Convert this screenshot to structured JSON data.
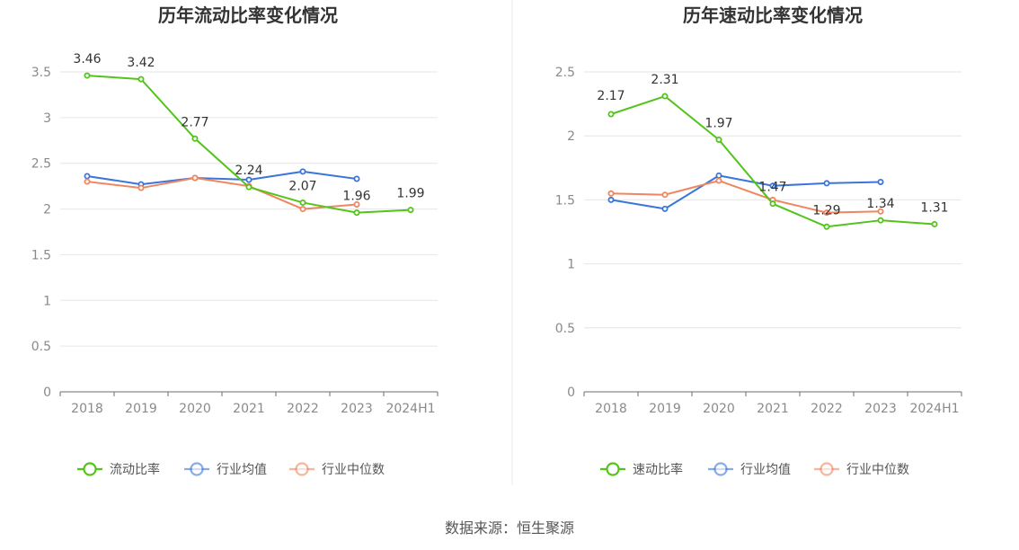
{
  "chart_data": [
    {
      "type": "line",
      "title": "历年流动比率变化情况",
      "categories": [
        "2018",
        "2019",
        "2020",
        "2021",
        "2022",
        "2023",
        "2024H1"
      ],
      "ylim": [
        0,
        3.5
      ],
      "yticks": [
        "0",
        "0.5",
        "1",
        "1.5",
        "2",
        "2.5",
        "3",
        "3.5"
      ],
      "grid": true,
      "legend_position": "bottom",
      "series": [
        {
          "name": "流动比率",
          "color": "#52c41a",
          "labels": true,
          "values": [
            3.46,
            3.42,
            2.77,
            2.24,
            2.07,
            1.96,
            1.99
          ],
          "labels_text": [
            "3.46",
            "3.42",
            "2.77",
            "2.24",
            "2.07",
            "1.96",
            "1.99"
          ]
        },
        {
          "name": "行业均值",
          "color": "#3b75d9",
          "labels": false,
          "values": [
            2.36,
            2.27,
            2.34,
            2.32,
            2.41,
            2.33,
            null
          ]
        },
        {
          "name": "行业中位数",
          "color": "#f0855f",
          "labels": false,
          "values": [
            2.3,
            2.23,
            2.34,
            2.25,
            2.0,
            2.05,
            null
          ]
        }
      ]
    },
    {
      "type": "line",
      "title": "历年速动比率变化情况",
      "categories": [
        "2018",
        "2019",
        "2020",
        "2021",
        "2022",
        "2023",
        "2024H1"
      ],
      "ylim": [
        0,
        2.5
      ],
      "yticks": [
        "0",
        "0.5",
        "1",
        "1.5",
        "2",
        "2.5"
      ],
      "grid": true,
      "legend_position": "bottom",
      "series": [
        {
          "name": "速动比率",
          "color": "#52c41a",
          "labels": true,
          "values": [
            2.17,
            2.31,
            1.97,
            1.47,
            1.29,
            1.34,
            1.31
          ],
          "labels_text": [
            "2.17",
            "2.31",
            "1.97",
            "1.47",
            "1.29",
            "1.34",
            "1.31"
          ]
        },
        {
          "name": "行业均值",
          "color": "#3b75d9",
          "labels": false,
          "values": [
            1.5,
            1.43,
            1.69,
            1.61,
            1.63,
            1.64,
            null
          ]
        },
        {
          "name": "行业中位数",
          "color": "#f0855f",
          "labels": false,
          "values": [
            1.55,
            1.54,
            1.65,
            1.5,
            1.4,
            1.41,
            null
          ]
        }
      ]
    }
  ],
  "footer": {
    "source": "数据来源：恒生聚源"
  }
}
